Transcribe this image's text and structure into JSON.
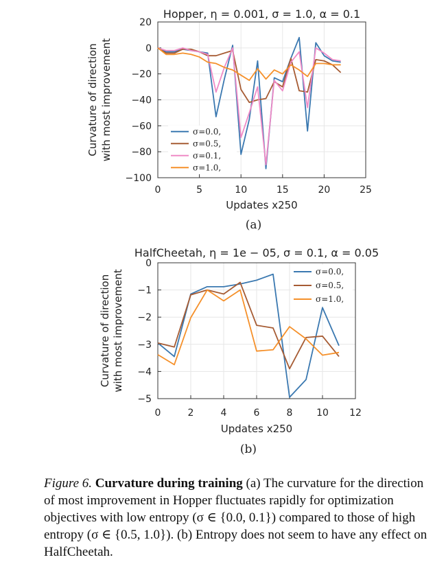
{
  "chart_data": [
    {
      "type": "line",
      "title": "Hopper, η = 0.001, σ = 1.0, α = 0.1",
      "xlabel": "Updates x250",
      "ylabel": "Curvature of direction with most improvement",
      "xlim": [
        0,
        25
      ],
      "ylim": [
        -100,
        20
      ],
      "xticks": [
        0,
        5,
        10,
        15,
        20,
        25
      ],
      "yticks": [
        20,
        0,
        -20,
        -40,
        -60,
        -80,
        -100
      ],
      "grid": true,
      "legend_position": "lower-left",
      "panel_label": "(a)",
      "x": [
        0,
        1,
        2,
        3,
        4,
        5,
        6,
        7,
        8,
        9,
        10,
        11,
        12,
        13,
        14,
        15,
        16,
        17,
        18,
        19,
        20,
        21,
        22
      ],
      "series": [
        {
          "name": "σ=0.0,",
          "color": "#3a78b0",
          "values": [
            0,
            -3,
            -3,
            -1,
            -2,
            -3,
            -4,
            -53,
            -24,
            2,
            -82,
            -55,
            -10,
            -93,
            -23,
            -26,
            -8,
            8,
            -64,
            4,
            -6,
            -10,
            -11
          ]
        },
        {
          "name": "σ=0.5,",
          "color": "#a65b33",
          "values": [
            0,
            -4,
            -4,
            -1,
            -1,
            -3,
            -6,
            -6,
            -4,
            -2,
            -32,
            -42,
            -40,
            -39,
            -26,
            -30,
            -8,
            -33,
            -34,
            -9,
            -10,
            -13,
            -19
          ]
        },
        {
          "name": "σ=0.1,",
          "color": "#ef8ac6",
          "values": [
            0,
            -2,
            -2,
            0,
            -2,
            -3,
            -5,
            -34,
            -15,
            0,
            -69,
            -50,
            -30,
            -90,
            -25,
            -33,
            -11,
            -3,
            -46,
            0,
            -4,
            -9,
            -10
          ]
        },
        {
          "name": "σ=1.0,",
          "color": "#f5902a",
          "values": [
            0,
            -5,
            -5,
            -4,
            -5,
            -7,
            -11,
            -12,
            -15,
            -17,
            -21,
            -25,
            -16,
            -24,
            -17,
            -20,
            -13,
            -17,
            -22,
            -12,
            -12,
            -13,
            -13
          ]
        }
      ]
    },
    {
      "type": "line",
      "title": "HalfCheetah, η = 1e − 05, σ = 0.1, α = 0.05",
      "xlabel": "Updates x250",
      "ylabel": "Curvature of direction with most improvement",
      "xlim": [
        0,
        12
      ],
      "ylim": [
        -5,
        0
      ],
      "xticks": [
        0,
        2,
        4,
        6,
        8,
        10,
        12
      ],
      "yticks": [
        0,
        -1,
        -2,
        -3,
        -4,
        -5
      ],
      "grid": true,
      "legend_position": "top-right",
      "panel_label": "(b)",
      "x": [
        0,
        1,
        2,
        3,
        4,
        5,
        6,
        7,
        8,
        9,
        10,
        11
      ],
      "series": [
        {
          "name": "σ=0.0,",
          "color": "#3a78b0",
          "values": [
            -2.95,
            -3.45,
            -1.15,
            -0.88,
            -0.88,
            -0.78,
            -0.64,
            -0.42,
            -4.95,
            -4.3,
            -1.65,
            -3.05
          ]
        },
        {
          "name": "σ=0.5,",
          "color": "#a65b33",
          "values": [
            -2.95,
            -3.1,
            -1.18,
            -1.0,
            -1.15,
            -0.72,
            -2.3,
            -2.4,
            -3.9,
            -2.75,
            -2.7,
            -3.45
          ]
        },
        {
          "name": "σ=1.0,",
          "color": "#f5902a",
          "values": [
            -3.38,
            -3.75,
            -2.02,
            -1.0,
            -1.4,
            -1.0,
            -3.25,
            -3.2,
            -2.35,
            -2.8,
            -3.4,
            -3.3
          ]
        }
      ]
    }
  ],
  "caption": {
    "label": "Figure 6.",
    "bold": "Curvature during training",
    "text": " (a) The curvature for the direction of most improvement in Hopper fluctuates rapidly for optimization objectives with low entropy (σ ∈ {0.0, 0.1}) compared to those of high entropy (σ ∈ {0.5, 1.0}). (b) Entropy does not seem to have any effect on HalfCheetah."
  }
}
